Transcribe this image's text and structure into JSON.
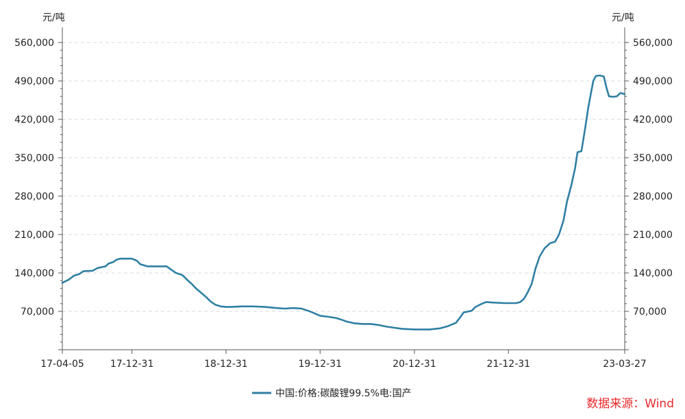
{
  "chart_data": {
    "type": "line",
    "title": "",
    "xlabel": "",
    "ylabel": "元/吨",
    "ylabel_right": "元/吨",
    "ylim": [
      0,
      570000
    ],
    "yticks": [
      70000,
      140000,
      210000,
      280000,
      350000,
      420000,
      490000,
      560000
    ],
    "ytick_labels": [
      "70,000",
      "140,000",
      "210,000",
      "280,000",
      "350,000",
      "420,000",
      "490,000",
      "560,000"
    ],
    "xlim": [
      "2017-04-05",
      "2023-03-27"
    ],
    "xticks": [
      "2017-04-05",
      "2017-12-31",
      "2018-12-31",
      "2019-12-31",
      "2020-12-31",
      "2021-12-31",
      "2023-03-27"
    ],
    "xtick_labels": [
      "17-04-05",
      "17-12-31",
      "18-12-31",
      "19-12-31",
      "20-12-31",
      "21-12-31",
      "23-03-27"
    ],
    "grid": true,
    "legend_position": "bottom",
    "colors": {
      "series": "#2e7fa3",
      "grid": "#d9d9d9",
      "axis": "#555555"
    },
    "series": [
      {
        "name": "中国:价格:碳酸锂99.5%电:国产",
        "points": [
          [
            "2017-04-05",
            122000
          ],
          [
            "2017-05-01",
            128000
          ],
          [
            "2017-05-20",
            135000
          ],
          [
            "2017-06-10",
            138000
          ],
          [
            "2017-06-25",
            143000
          ],
          [
            "2017-08-01",
            144000
          ],
          [
            "2017-08-20",
            149000
          ],
          [
            "2017-09-20",
            152000
          ],
          [
            "2017-10-01",
            157000
          ],
          [
            "2017-10-20",
            160000
          ],
          [
            "2017-11-01",
            164000
          ],
          [
            "2017-11-15",
            166000
          ],
          [
            "2017-12-31",
            166000
          ],
          [
            "2018-01-20",
            162000
          ],
          [
            "2018-02-01",
            156000
          ],
          [
            "2018-03-01",
            152000
          ],
          [
            "2018-04-01",
            152000
          ],
          [
            "2018-05-15",
            152000
          ],
          [
            "2018-06-01",
            146000
          ],
          [
            "2018-06-20",
            140000
          ],
          [
            "2018-07-15",
            136000
          ],
          [
            "2018-08-01",
            128000
          ],
          [
            "2018-08-20",
            120000
          ],
          [
            "2018-09-05",
            112000
          ],
          [
            "2018-09-25",
            104000
          ],
          [
            "2018-10-15",
            96000
          ],
          [
            "2018-11-01",
            88000
          ],
          [
            "2018-11-20",
            82000
          ],
          [
            "2018-12-10",
            79000
          ],
          [
            "2018-12-31",
            78000
          ],
          [
            "2019-01-20",
            78000
          ],
          [
            "2019-03-01",
            79000
          ],
          [
            "2019-04-15",
            79000
          ],
          [
            "2019-06-01",
            78000
          ],
          [
            "2019-07-15",
            76000
          ],
          [
            "2019-08-15",
            75000
          ],
          [
            "2019-09-20",
            76000
          ],
          [
            "2019-10-20",
            75000
          ],
          [
            "2019-11-15",
            71000
          ],
          [
            "2019-12-01",
            68000
          ],
          [
            "2019-12-31",
            62000
          ],
          [
            "2020-02-01",
            60000
          ],
          [
            "2020-03-01",
            58000
          ],
          [
            "2020-03-15",
            56000
          ],
          [
            "2020-04-15",
            51000
          ],
          [
            "2020-05-15",
            48000
          ],
          [
            "2020-06-15",
            47000
          ],
          [
            "2020-07-15",
            47000
          ],
          [
            "2020-08-15",
            45000
          ],
          [
            "2020-09-15",
            42000
          ],
          [
            "2020-10-15",
            40000
          ],
          [
            "2020-11-15",
            38000
          ],
          [
            "2020-12-31",
            37000
          ],
          [
            "2021-01-31",
            37000
          ],
          [
            "2021-02-28",
            37000
          ],
          [
            "2021-04-10",
            39000
          ],
          [
            "2021-05-10",
            43000
          ],
          [
            "2021-06-10",
            49000
          ],
          [
            "2021-06-25",
            58000
          ],
          [
            "2021-07-10",
            68000
          ],
          [
            "2021-08-10",
            71000
          ],
          [
            "2021-08-25",
            78000
          ],
          [
            "2021-09-15",
            83000
          ],
          [
            "2021-10-05",
            87000
          ],
          [
            "2021-11-01",
            86000
          ],
          [
            "2021-12-15",
            85000
          ],
          [
            "2022-01-31",
            85000
          ],
          [
            "2022-02-15",
            87000
          ],
          [
            "2022-03-01",
            93000
          ],
          [
            "2022-03-15",
            104000
          ],
          [
            "2022-03-31",
            120000
          ],
          [
            "2022-04-15",
            148000
          ],
          [
            "2022-05-01",
            170000
          ],
          [
            "2022-05-20",
            185000
          ],
          [
            "2022-06-10",
            194000
          ],
          [
            "2022-06-30",
            197000
          ],
          [
            "2022-07-15",
            210000
          ],
          [
            "2022-08-01",
            235000
          ],
          [
            "2022-08-15",
            270000
          ],
          [
            "2022-09-01",
            300000
          ],
          [
            "2022-09-15",
            330000
          ],
          [
            "2022-09-25",
            360000
          ],
          [
            "2022-10-10",
            362000
          ],
          [
            "2022-10-25",
            405000
          ],
          [
            "2022-11-05",
            440000
          ],
          [
            "2022-11-15",
            465000
          ],
          [
            "2022-11-25",
            490000
          ],
          [
            "2022-12-05",
            499000
          ],
          [
            "2022-12-20",
            500000
          ],
          [
            "2023-01-05",
            498000
          ],
          [
            "2023-01-15",
            478000
          ],
          [
            "2023-01-25",
            462000
          ],
          [
            "2023-02-10",
            461000
          ],
          [
            "2023-02-25",
            462000
          ],
          [
            "2023-03-10",
            468000
          ],
          [
            "2023-03-27",
            466000
          ]
        ]
      }
    ]
  },
  "legend": {
    "label": "中国:价格:碳酸锂99.5%电:国产"
  },
  "source": {
    "text": "数据来源：Wind"
  }
}
